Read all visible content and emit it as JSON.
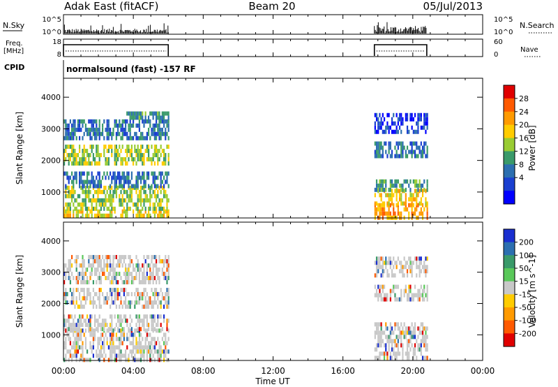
{
  "header": {
    "station": "Adak East (fitACF)",
    "beam": "Beam 20",
    "date": "05/Jul/2013"
  },
  "top_panels": {
    "nsky_label": "N.Sky",
    "nsky_ticks": [
      "10^5",
      "10^0"
    ],
    "nsearch_label": "N.Search",
    "nsearch_ticks": [
      "10^5",
      "10^0"
    ],
    "freq_label_line1": "Freq.",
    "freq_label_line2": "[MHz]",
    "freq_ticks": [
      "18",
      "8"
    ],
    "nave_label": "Nave",
    "nave_ticks": [
      "60",
      "0"
    ],
    "cpid_label": "CPID",
    "cpid_text": "normalsound (fast) -157 RF",
    "active_intervals_hours": [
      [
        0.0,
        6.0
      ],
      [
        17.8,
        20.8
      ]
    ]
  },
  "chart_data": [
    {
      "type": "heatmap",
      "name": "power-panel",
      "ylabel": "Slant Range [km]",
      "xlabel": "Time UT",
      "x_ticks": [
        "00:00",
        "04:00",
        "08:00",
        "12:00",
        "16:00",
        "20:00",
        "00:00"
      ],
      "xlim_hours": [
        0,
        24
      ],
      "ylim": [
        180,
        4600
      ],
      "y_ticks": [
        1000,
        2000,
        3000,
        4000
      ],
      "colorbar": {
        "label": "Power [dB]",
        "ticks": [
          "28",
          "24",
          "20",
          "16",
          "12",
          "8",
          "4"
        ],
        "colors_top_to_bottom": [
          "#e00000",
          "#ff5a00",
          "#ff9a00",
          "#ffcc00",
          "#99cc33",
          "#3a9a6a",
          "#2c6fb0",
          "#1a3fd0",
          "#0000ff"
        ]
      },
      "bands": [
        {
          "t0": 0.0,
          "t1": 6.0,
          "r0": 250,
          "r1": 450,
          "level": 5
        },
        {
          "t0": 0.0,
          "t1": 6.0,
          "r0": 450,
          "r1": 1200,
          "level": 4
        },
        {
          "t0": 0.0,
          "t1": 6.0,
          "r0": 1200,
          "r1": 1650,
          "level": 2
        },
        {
          "t0": 0.0,
          "t1": 6.0,
          "r0": 1900,
          "r1": 2500,
          "level": 4
        },
        {
          "t0": 0.0,
          "t1": 6.0,
          "r0": 2700,
          "r1": 3300,
          "level": 2
        },
        {
          "t0": 3.6,
          "t1": 6.0,
          "r0": 3300,
          "r1": 3550,
          "level": 3
        },
        {
          "t0": 17.8,
          "t1": 20.8,
          "r0": 250,
          "r1": 650,
          "level": 6
        },
        {
          "t0": 17.8,
          "t1": 20.8,
          "r0": 650,
          "r1": 1100,
          "level": 5
        },
        {
          "t0": 17.8,
          "t1": 20.8,
          "r0": 1100,
          "r1": 1400,
          "level": 3
        },
        {
          "t0": 17.8,
          "t1": 20.8,
          "r0": 2100,
          "r1": 2600,
          "level": 2
        },
        {
          "t0": 17.8,
          "t1": 20.8,
          "r0": 2900,
          "r1": 3500,
          "level": 1
        }
      ]
    },
    {
      "type": "heatmap",
      "name": "velocity-panel",
      "ylabel": "Slant Range [km]",
      "xlabel": "Time UT",
      "x_ticks": [
        "00:00",
        "04:00",
        "08:00",
        "12:00",
        "16:00",
        "20:00",
        "00:00"
      ],
      "xlim_hours": [
        0,
        24
      ],
      "ylim": [
        180,
        4600
      ],
      "y_ticks": [
        1000,
        2000,
        3000,
        4000
      ],
      "colorbar": {
        "label": "Velocity [m s^-1]",
        "ticks": [
          "200",
          "100",
          "50",
          "15",
          "-15",
          "-50",
          "-100",
          "-200"
        ],
        "colors_top_to_bottom": [
          "#1a2fd0",
          "#2c6fb0",
          "#3a9a6a",
          "#5ac85a",
          "#c8c8c8",
          "#ffcc00",
          "#ff9a00",
          "#ff5a00",
          "#e00000"
        ]
      },
      "bands": [
        {
          "t0": 0.0,
          "t1": 6.0,
          "r0": 250,
          "r1": 1200,
          "level": 0
        },
        {
          "t0": 0.0,
          "t1": 6.0,
          "r0": 1200,
          "r1": 1650,
          "level": 1
        },
        {
          "t0": 0.0,
          "t1": 6.0,
          "r0": 1900,
          "r1": 2500,
          "level": 0
        },
        {
          "t0": 0.0,
          "t1": 6.0,
          "r0": 2700,
          "r1": 3550,
          "level": 1
        },
        {
          "t0": 17.8,
          "t1": 20.8,
          "r0": 250,
          "r1": 1400,
          "level": 0
        },
        {
          "t0": 17.8,
          "t1": 20.8,
          "r0": 2100,
          "r1": 2600,
          "level": 0
        },
        {
          "t0": 17.8,
          "t1": 20.8,
          "r0": 2900,
          "r1": 3500,
          "level": 1
        }
      ]
    }
  ]
}
